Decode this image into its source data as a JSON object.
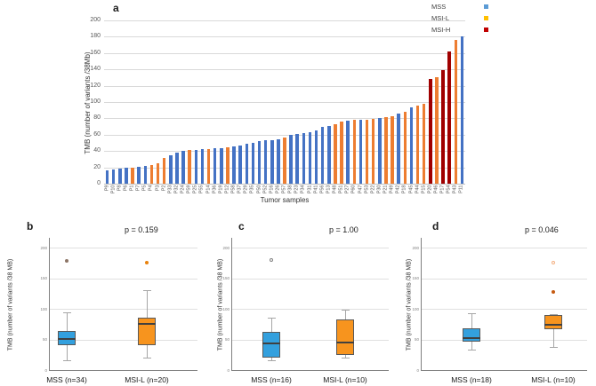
{
  "chart_data": [
    {
      "id": "a",
      "panel_label": "a",
      "type": "bar",
      "title": "",
      "xlabel": "Tumor samples",
      "ylabel": "TMB (number of variants /38Mb)",
      "ylim": [
        0,
        200
      ],
      "ytick_step": 20,
      "grid": true,
      "legend_position": "top-right",
      "legend": [
        {
          "label": "MSS",
          "color": "#5B9BD5"
        },
        {
          "label": "MSI-L",
          "color": "#FFC000"
        },
        {
          "label": "MSI-H",
          "color": "#C00000"
        }
      ],
      "series_colors": {
        "MSS": "#4472C4",
        "MSI-L": "#ED7D31",
        "MSI-H": "#A00000"
      },
      "bars": [
        {
          "sample": "P9",
          "value": 16,
          "group": "MSS"
        },
        {
          "sample": "P10",
          "value": 17,
          "group": "MSS"
        },
        {
          "sample": "P8",
          "value": 18,
          "group": "MSS"
        },
        {
          "sample": "P6",
          "value": 20,
          "group": "MSS"
        },
        {
          "sample": "P1",
          "value": 20,
          "group": "MSI-L"
        },
        {
          "sample": "P7",
          "value": 21,
          "group": "MSS"
        },
        {
          "sample": "P5",
          "value": 22,
          "group": "MSS"
        },
        {
          "sample": "P4",
          "value": 23,
          "group": "MSI-L"
        },
        {
          "sample": "P3",
          "value": 25,
          "group": "MSI-L"
        },
        {
          "sample": "P2",
          "value": 32,
          "group": "MSI-L"
        },
        {
          "sample": "P33",
          "value": 35,
          "group": "MSS"
        },
        {
          "sample": "P32",
          "value": 38,
          "group": "MSS"
        },
        {
          "sample": "P24",
          "value": 40,
          "group": "MSS"
        },
        {
          "sample": "P59",
          "value": 41,
          "group": "MSI-L"
        },
        {
          "sample": "P25",
          "value": 41,
          "group": "MSS"
        },
        {
          "sample": "P55",
          "value": 42,
          "group": "MSS"
        },
        {
          "sample": "P14",
          "value": 42,
          "group": "MSI-L"
        },
        {
          "sample": "P36",
          "value": 43,
          "group": "MSS"
        },
        {
          "sample": "P19",
          "value": 44,
          "group": "MSS"
        },
        {
          "sample": "P12",
          "value": 45,
          "group": "MSI-L"
        },
        {
          "sample": "P58",
          "value": 46,
          "group": "MSS"
        },
        {
          "sample": "P37",
          "value": 47,
          "group": "MSS"
        },
        {
          "sample": "P29",
          "value": 49,
          "group": "MSS"
        },
        {
          "sample": "P35",
          "value": 50,
          "group": "MSS"
        },
        {
          "sample": "P50",
          "value": 52,
          "group": "MSS"
        },
        {
          "sample": "P52",
          "value": 53,
          "group": "MSS"
        },
        {
          "sample": "P16",
          "value": 53,
          "group": "MSS"
        },
        {
          "sample": "P26",
          "value": 54,
          "group": "MSS"
        },
        {
          "sample": "P57",
          "value": 57,
          "group": "MSI-L"
        },
        {
          "sample": "P38",
          "value": 60,
          "group": "MSS"
        },
        {
          "sample": "P23",
          "value": 61,
          "group": "MSS"
        },
        {
          "sample": "P34",
          "value": 62,
          "group": "MSS"
        },
        {
          "sample": "P31",
          "value": 63,
          "group": "MSS"
        },
        {
          "sample": "P41",
          "value": 65,
          "group": "MSS"
        },
        {
          "sample": "P56",
          "value": 70,
          "group": "MSS"
        },
        {
          "sample": "P13",
          "value": 71,
          "group": "MSS"
        },
        {
          "sample": "P48",
          "value": 73,
          "group": "MSI-L"
        },
        {
          "sample": "P51",
          "value": 76,
          "group": "MSI-L"
        },
        {
          "sample": "P27",
          "value": 77,
          "group": "MSS"
        },
        {
          "sample": "P60",
          "value": 78,
          "group": "MSI-L"
        },
        {
          "sample": "P47",
          "value": 78,
          "group": "MSS"
        },
        {
          "sample": "P53",
          "value": 78,
          "group": "MSI-L"
        },
        {
          "sample": "P22",
          "value": 79,
          "group": "MSI-L"
        },
        {
          "sample": "P30",
          "value": 81,
          "group": "MSS"
        },
        {
          "sample": "P21",
          "value": 82,
          "group": "MSI-L"
        },
        {
          "sample": "P49",
          "value": 83,
          "group": "MSI-L"
        },
        {
          "sample": "P42",
          "value": 86,
          "group": "MSS"
        },
        {
          "sample": "P18",
          "value": 88,
          "group": "MSI-L"
        },
        {
          "sample": "P45",
          "value": 93,
          "group": "MSS"
        },
        {
          "sample": "P44",
          "value": 96,
          "group": "MSI-L"
        },
        {
          "sample": "P15",
          "value": 98,
          "group": "MSI-L"
        },
        {
          "sample": "P20",
          "value": 128,
          "group": "MSI-H"
        },
        {
          "sample": "P46",
          "value": 131,
          "group": "MSI-L"
        },
        {
          "sample": "P17",
          "value": 139,
          "group": "MSI-H"
        },
        {
          "sample": "P54",
          "value": 162,
          "group": "MSI-H"
        },
        {
          "sample": "P43",
          "value": 176,
          "group": "MSI-L"
        },
        {
          "sample": "P11",
          "value": 180,
          "group": "MSS"
        }
      ]
    },
    {
      "id": "b",
      "panel_label": "b",
      "type": "boxplot",
      "p_label": "p = 0.159",
      "ylabel": "TMB (number of variants /38 MB)",
      "ylim": [
        0,
        200
      ],
      "yticks": [
        0,
        50,
        100,
        150,
        200
      ],
      "boxes": [
        {
          "category": "MSS (n=34)",
          "group": "MSS",
          "color": "#33A0DE",
          "whisker_low": 16,
          "q1": 40,
          "median": 51,
          "q3": 64,
          "whisker_high": 94,
          "outliers": [
            {
              "value": 178,
              "style": "filled",
              "color": "#8C7566"
            }
          ]
        },
        {
          "category": "MSI-L (n=20)",
          "group": "MSI-L",
          "color": "#F7941E",
          "whisker_low": 20,
          "q1": 41,
          "median": 76,
          "q3": 86,
          "whisker_high": 131,
          "outliers": [
            {
              "value": 176,
              "style": "filled",
              "color": "#E8820D"
            }
          ]
        }
      ]
    },
    {
      "id": "c",
      "panel_label": "c",
      "type": "boxplot",
      "p_label": "p = 1.00",
      "ylabel": "TMB (number of variants /38 MB)",
      "ylim": [
        0,
        200
      ],
      "yticks": [
        0,
        50,
        100,
        150,
        200
      ],
      "boxes": [
        {
          "category": "MSS (n=16)",
          "group": "MSS",
          "color": "#33A0DE",
          "whisker_low": 16,
          "q1": 21,
          "median": 43,
          "q3": 63,
          "whisker_high": 86,
          "outliers": [
            {
              "value": 180,
              "style": "open",
              "color": "#808080"
            }
          ]
        },
        {
          "category": "MSI-L (n=10)",
          "group": "MSI-L",
          "color": "#F7941E",
          "whisker_low": 20,
          "q1": 25,
          "median": 45,
          "q3": 83,
          "whisker_high": 99,
          "outliers": []
        }
      ]
    },
    {
      "id": "d",
      "panel_label": "d",
      "type": "boxplot",
      "p_label": "p = 0.046",
      "ylabel": "TMB (number of variants /38 MB)",
      "ylim": [
        0,
        200
      ],
      "yticks": [
        0,
        50,
        100,
        150,
        200
      ],
      "boxes": [
        {
          "category": "MSS (n=18)",
          "group": "MSS",
          "color": "#33A0DE",
          "whisker_low": 34,
          "q1": 47,
          "median": 52,
          "q3": 68,
          "whisker_high": 93,
          "outliers": []
        },
        {
          "category": "MSI-L (n=10)",
          "group": "MSI-L",
          "color": "#F7941E",
          "whisker_low": 38,
          "q1": 67,
          "median": 74,
          "q3": 90,
          "whisker_high": 91,
          "outliers": [
            {
              "value": 127,
              "style": "filled",
              "color": "#C55A11"
            },
            {
              "value": 175,
              "style": "open",
              "color": "#F4B183"
            }
          ]
        }
      ]
    }
  ]
}
